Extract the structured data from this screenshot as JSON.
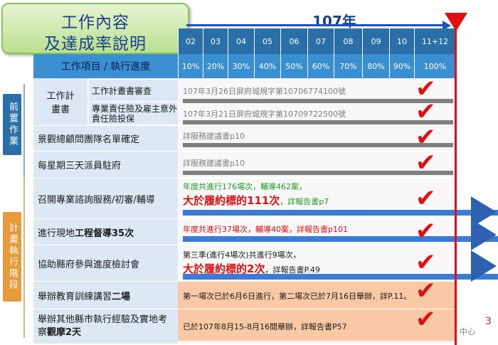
{
  "title": {
    "line1": "工作內容",
    "line2": "及達成率說明"
  },
  "year_label": "107年",
  "months": [
    "02",
    "03",
    "04",
    "05",
    "06",
    "07",
    "08",
    "09",
    "10",
    "11+12"
  ],
  "percents": [
    "10%",
    "20%",
    "30%",
    "40%",
    "50%",
    "60%",
    "70%",
    "80%",
    "90%",
    "100%"
  ],
  "column_header": "工作項目 / 執行進度",
  "side_labels": {
    "pre": "前置作業",
    "exec": "計畫執行階段"
  },
  "rows": {
    "r1_group": "工作計畫書",
    "r1a_label": "工作計畫書審查",
    "r1a_text": "107年3月26日屏府城規字第10706774100號",
    "r1b_label": "專業責任險及雇主意外責任險投保",
    "r1b_text": "107年3月21日屏府城規字第10709722500號",
    "r2_label": "景觀總顧問團隊名單確定",
    "r2_text": "詳服務建議書p10",
    "r3_label": "每星期三天派員駐府",
    "r3_text": "詳服務建議書p10",
    "r4_label": "召開專業諮詢服務/初審/輔導",
    "r4_text1": "年度共進行176場次，輔導462案，",
    "r4_big": "大於履約標的111次",
    "r4_text2": "，詳報告書p7",
    "r5_label_a": "進行現地",
    "r5_label_b": "工程督導35次",
    "r5_text": "年度共進行37場次，輔導40案，詳報告書p101",
    "r6_label": "協助縣府參與進度檢討會",
    "r6_text1": "第三季(進行4場次)共進行9場次，",
    "r6_big": "大於履約標的2次",
    "r6_text2": "，詳報告書P.49",
    "r7_label_a": "舉辦教育訓練講習",
    "r7_label_b": "二場",
    "r7_text": "第一場次已於6月6日進行，第二場次已於7月16日舉辦，詳P.11。",
    "r8_label_a": "舉辦其他縣市執行經驗及實地考察",
    "r8_label_b": "觀摩2天",
    "r8_text": "已於107年8月15-8月16間舉辦，詳報告書P57"
  },
  "page_number": "3",
  "footer_fragment": "中心",
  "colors": {
    "header": "#2a6fa8",
    "accent_red": "#e01010",
    "bar_blue": "#3a7bd5",
    "side_orange": "#e69a3c"
  }
}
